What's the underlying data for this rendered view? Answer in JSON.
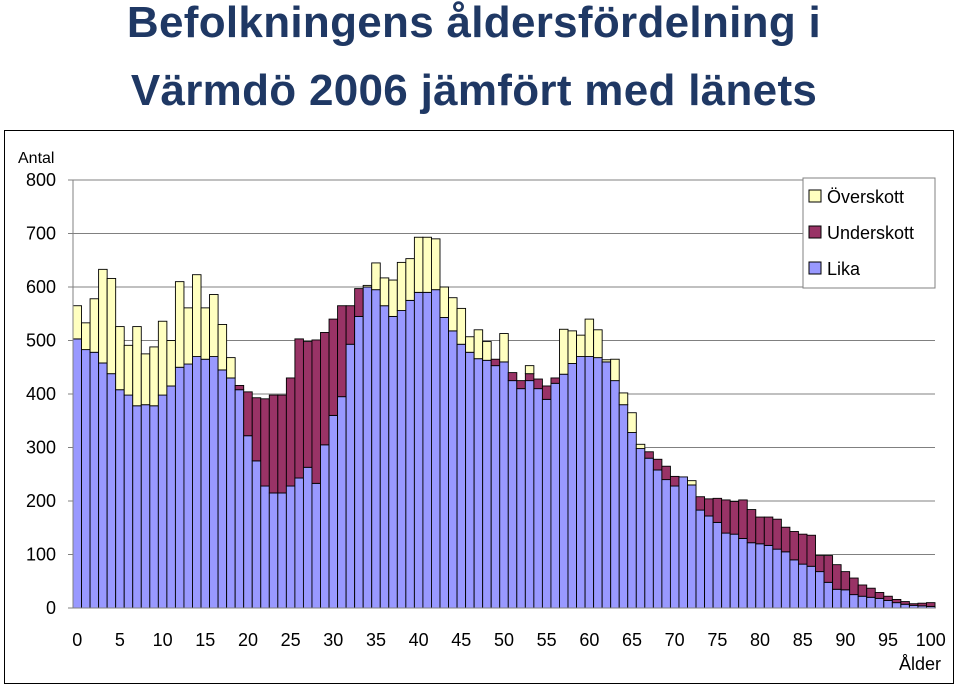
{
  "title": {
    "line1": "Befolkningens åldersfördelning i",
    "line2": "Värmdö 2006 jämfört med länets"
  },
  "colors": {
    "title": "#1f3864",
    "overskott": "#ffffc0",
    "underskott": "#993366",
    "lika": "#9999ff",
    "outline": "#000000"
  },
  "chart_data": {
    "type": "bar",
    "stacked": true,
    "ylabel": "Antal",
    "xlabel": "Ålder",
    "ylim": [
      0,
      800
    ],
    "yticks": [
      "0",
      "100",
      "200",
      "300",
      "400",
      "500",
      "600",
      "700",
      "800"
    ],
    "xticks": [
      "0",
      "5",
      "10",
      "15",
      "20",
      "25",
      "30",
      "35",
      "40",
      "45",
      "50",
      "55",
      "60",
      "65",
      "70",
      "75",
      "80",
      "85",
      "90",
      "95",
      "100"
    ],
    "grid": true,
    "legend_position": "top-right",
    "x": [
      0,
      1,
      2,
      3,
      4,
      5,
      6,
      7,
      8,
      9,
      10,
      11,
      12,
      13,
      14,
      15,
      16,
      17,
      18,
      19,
      20,
      21,
      22,
      23,
      24,
      25,
      26,
      27,
      28,
      29,
      30,
      31,
      32,
      33,
      34,
      35,
      36,
      37,
      38,
      39,
      40,
      41,
      42,
      43,
      44,
      45,
      46,
      47,
      48,
      49,
      50,
      51,
      52,
      53,
      54,
      55,
      56,
      57,
      58,
      59,
      60,
      61,
      62,
      63,
      64,
      65,
      66,
      67,
      68,
      69,
      70,
      71,
      72,
      73,
      74,
      75,
      76,
      77,
      78,
      79,
      80,
      81,
      82,
      83,
      84,
      85,
      86,
      87,
      88,
      89,
      90,
      91,
      92,
      93,
      94,
      95,
      96,
      97,
      98,
      99,
      100
    ],
    "series": [
      {
        "name": "Lika",
        "values": [
          503,
          483,
          478,
          458,
          438,
          408,
          398,
          378,
          380,
          378,
          398,
          415,
          450,
          456,
          470,
          465,
          470,
          445,
          430,
          408,
          322,
          275,
          228,
          215,
          215,
          228,
          243,
          263,
          233,
          305,
          360,
          395,
          493,
          545,
          600,
          595,
          565,
          545,
          556,
          575,
          590,
          590,
          595,
          543,
          518,
          493,
          478,
          466,
          463,
          453,
          460,
          425,
          410,
          425,
          410,
          390,
          420,
          437,
          457,
          470,
          470,
          468,
          460,
          425,
          380,
          328,
          298,
          280,
          258,
          240,
          228,
          245,
          230,
          183,
          172,
          160,
          140,
          138,
          130,
          122,
          120,
          117,
          110,
          105,
          90,
          82,
          78,
          68,
          48,
          35,
          34,
          25,
          22,
          20,
          18,
          14,
          10,
          7,
          5,
          4,
          3
        ]
      },
      {
        "name": "Underskott",
        "values": [
          0,
          0,
          0,
          0,
          0,
          0,
          0,
          0,
          0,
          0,
          0,
          0,
          0,
          0,
          0,
          0,
          0,
          0,
          0,
          8,
          82,
          118,
          163,
          183,
          183,
          202,
          260,
          235,
          268,
          210,
          180,
          170,
          72,
          52,
          0,
          0,
          0,
          0,
          0,
          0,
          0,
          0,
          0,
          0,
          0,
          0,
          0,
          0,
          0,
          12,
          0,
          15,
          15,
          13,
          18,
          25,
          10,
          0,
          0,
          0,
          0,
          0,
          0,
          0,
          0,
          0,
          0,
          12,
          20,
          25,
          18,
          0,
          0,
          25,
          32,
          45,
          62,
          61,
          72,
          62,
          50,
          53,
          56,
          46,
          53,
          56,
          58,
          30,
          50,
          46,
          34,
          31,
          21,
          17,
          11,
          8,
          6,
          5,
          3,
          5,
          7
        ]
      },
      {
        "name": "Överskott",
        "values": [
          62,
          50,
          100,
          175,
          178,
          118,
          93,
          148,
          95,
          110,
          138,
          85,
          160,
          105,
          153,
          96,
          116,
          85,
          38,
          0,
          0,
          0,
          0,
          0,
          0,
          0,
          0,
          0,
          0,
          0,
          0,
          0,
          0,
          0,
          3,
          50,
          52,
          68,
          90,
          78,
          103,
          103,
          95,
          57,
          62,
          67,
          29,
          54,
          35,
          0,
          53,
          0,
          0,
          15,
          0,
          0,
          0,
          84,
          61,
          40,
          70,
          52,
          4,
          40,
          22,
          37,
          8,
          0,
          0,
          0,
          0,
          0,
          8,
          0,
          0,
          0,
          0,
          0,
          0,
          0,
          0,
          0,
          0,
          0,
          0,
          0,
          0,
          0,
          0,
          0,
          0,
          0,
          0,
          0,
          0,
          0,
          0,
          0,
          0,
          0,
          0
        ]
      }
    ]
  }
}
